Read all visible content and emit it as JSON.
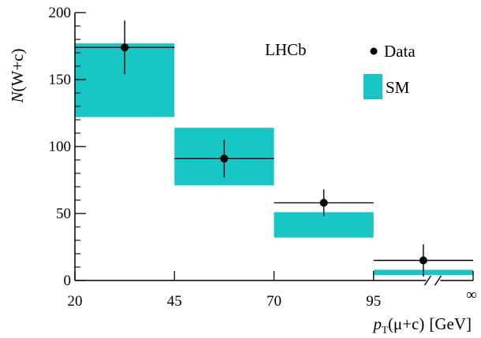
{
  "chart_data": {
    "type": "bar",
    "experiment_label": "LHCb",
    "ylabel_parts": {
      "var": "N",
      "args": "(W+c)"
    },
    "xlabel_parts": {
      "var": "p",
      "sub": "T",
      "args": "(μ+c)",
      "unit": "[GeV]"
    },
    "ylim": [
      0,
      200
    ],
    "y_ticks": [
      0,
      50,
      100,
      150,
      200
    ],
    "y_minor_step": 10,
    "x_tick_labels": [
      "20",
      "45",
      "70",
      "95",
      "∞"
    ],
    "grid": false,
    "legend_position": "top-right",
    "legend": {
      "data_label": "Data",
      "sm_label": "SM"
    },
    "sm_color": "#18c6c6",
    "bins": [
      {
        "low": "20",
        "high": "45",
        "sm_low": 122,
        "sm_high": 177,
        "data": 174,
        "data_err": 20
      },
      {
        "low": "45",
        "high": "70",
        "sm_low": 71,
        "sm_high": 114,
        "data": 91,
        "data_err": 14
      },
      {
        "low": "70",
        "high": "95",
        "sm_low": 32,
        "sm_high": 51,
        "data": 58,
        "data_err": 10
      },
      {
        "low": "95",
        "high": "∞",
        "sm_low": 4,
        "sm_high": 8,
        "data": 15,
        "data_err": 12
      }
    ]
  }
}
